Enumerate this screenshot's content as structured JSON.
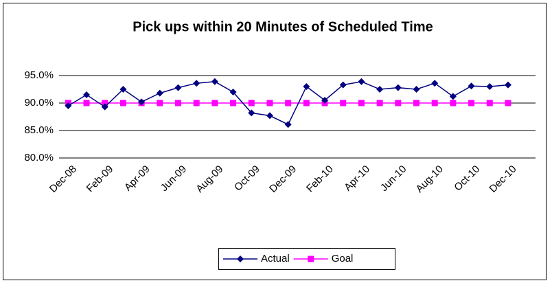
{
  "chart_data": {
    "type": "line",
    "title": "Pick ups within 20 Minutes of Scheduled Time",
    "categories": [
      "Dec-08",
      null,
      "Feb-09",
      null,
      "Apr-09",
      null,
      "Jun-09",
      null,
      "Aug-09",
      null,
      "Oct-09",
      null,
      "Dec-09",
      null,
      "Feb-10",
      null,
      "Apr-10",
      null,
      "Jun-10",
      null,
      "Aug-10",
      null,
      "Oct-10",
      null,
      "Dec-10",
      null
    ],
    "series": [
      {
        "name": "Actual",
        "color": "#000080",
        "marker": "diamond",
        "values": [
          89.5,
          91.5,
          89.3,
          92.5,
          90.2,
          91.8,
          92.8,
          93.6,
          93.9,
          92.0,
          88.2,
          87.7,
          86.1,
          93.0,
          90.5,
          93.3,
          93.9,
          92.5,
          92.8,
          92.5,
          93.6,
          91.2,
          93.1,
          93.0,
          93.3,
          null
        ]
      },
      {
        "name": "Goal",
        "color": "#ff00ff",
        "marker": "square",
        "values": [
          90,
          90,
          90,
          90,
          90,
          90,
          90,
          90,
          90,
          90,
          90,
          90,
          90,
          90,
          90,
          90,
          90,
          90,
          90,
          90,
          90,
          90,
          90,
          90,
          90,
          null
        ]
      }
    ],
    "ylim": [
      80,
      97
    ],
    "yticks": [
      {
        "value": 80,
        "label": "80.0%"
      },
      {
        "value": 85,
        "label": "85.0%"
      },
      {
        "value": 90,
        "label": "90.0%"
      },
      {
        "value": 95,
        "label": "95.0%"
      }
    ],
    "grid": true,
    "legend": "bottom"
  }
}
